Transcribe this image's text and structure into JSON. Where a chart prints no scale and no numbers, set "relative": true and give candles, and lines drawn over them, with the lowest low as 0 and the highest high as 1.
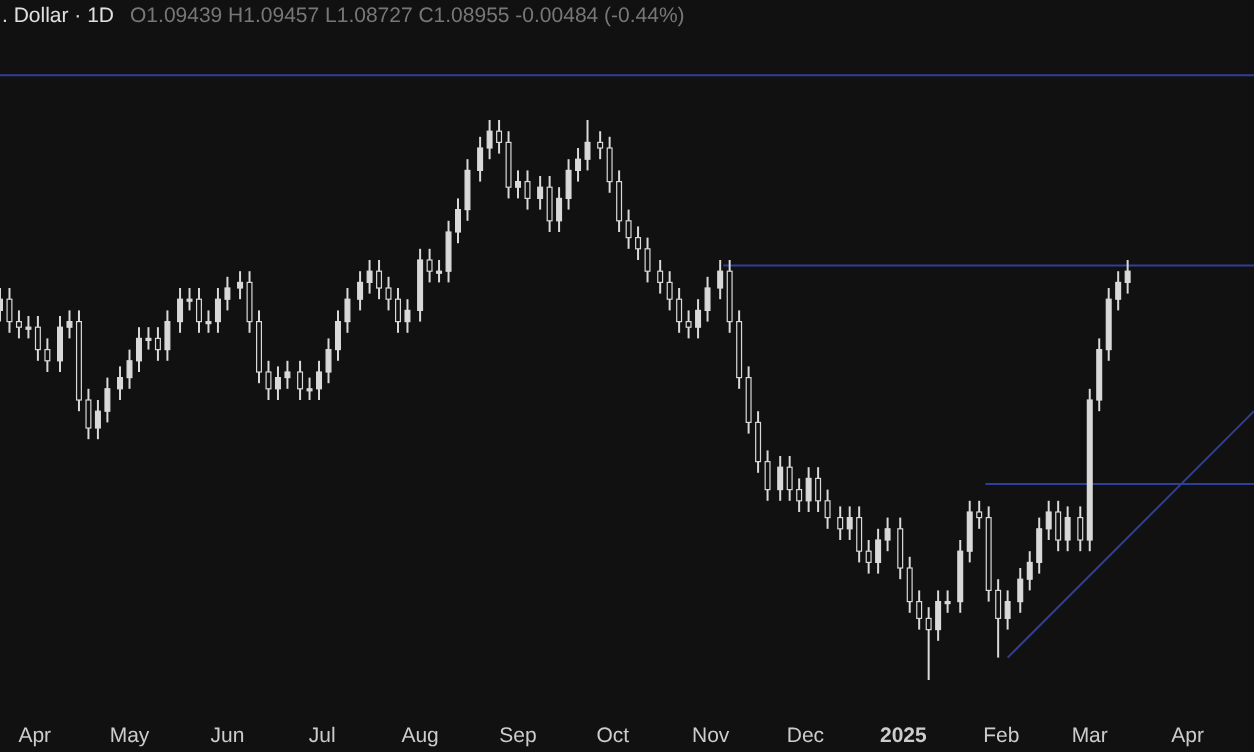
{
  "chart_data": {
    "type": "candlestick",
    "title": ". Dollar · 1D",
    "annotations": [
      "O1.09439 H1.09457 L1.08727 C1.08955 -0.00484 (-0.44%)"
    ],
    "relative": true,
    "color": "#d9d9d9",
    "xlim": [
      "2024-03-21",
      "2025-04-22"
    ],
    "xticks": [
      {
        "value": "2024-04-01",
        "label": "Apr"
      },
      {
        "value": "2024-05-01",
        "label": "May"
      },
      {
        "value": "2024-06-01",
        "label": "Jun"
      },
      {
        "value": "2024-07-01",
        "label": "Jul"
      },
      {
        "value": "2024-08-01",
        "label": "Aug"
      },
      {
        "value": "2024-09-01",
        "label": "Sep"
      },
      {
        "value": "2024-10-01",
        "label": "Oct"
      },
      {
        "value": "2024-11-01",
        "label": "Nov"
      },
      {
        "value": "2024-12-01",
        "label": "Dec"
      },
      {
        "value": "2025-01-01",
        "label": "2025"
      },
      {
        "value": "2025-02-01",
        "label": "Feb"
      },
      {
        "value": "2025-03-01",
        "label": "Mar"
      },
      {
        "value": "2025-04-01",
        "label": "Apr"
      }
    ],
    "grid": false,
    "tick_labels": "x",
    "x": [
      "2024-03-21",
      "2024-03-24",
      "2024-03-27",
      "2024-03-30",
      "2024-04-02",
      "2024-04-05",
      "2024-04-09",
      "2024-04-12",
      "2024-04-15",
      "2024-04-18",
      "2024-04-21",
      "2024-04-24",
      "2024-04-28",
      "2024-05-01",
      "2024-05-04",
      "2024-05-07",
      "2024-05-10",
      "2024-05-13",
      "2024-05-17",
      "2024-05-20",
      "2024-05-23",
      "2024-05-26",
      "2024-05-29",
      "2024-06-01",
      "2024-06-05",
      "2024-06-08",
      "2024-06-11",
      "2024-06-14",
      "2024-06-17",
      "2024-06-20",
      "2024-06-24",
      "2024-06-27",
      "2024-06-30",
      "2024-07-03",
      "2024-07-06",
      "2024-07-09",
      "2024-07-13",
      "2024-07-16",
      "2024-07-19",
      "2024-07-22",
      "2024-07-25",
      "2024-07-28",
      "2024-08-01",
      "2024-08-04",
      "2024-08-07",
      "2024-08-10",
      "2024-08-13",
      "2024-08-16",
      "2024-08-20",
      "2024-08-23",
      "2024-08-26",
      "2024-08-29",
      "2024-09-01",
      "2024-09-04",
      "2024-09-08",
      "2024-09-11",
      "2024-09-14",
      "2024-09-17",
      "2024-09-20",
      "2024-09-23",
      "2024-09-27",
      "2024-09-30",
      "2024-10-03",
      "2024-10-06",
      "2024-10-09",
      "2024-10-12",
      "2024-10-16",
      "2024-10-19",
      "2024-10-22",
      "2024-10-25",
      "2024-10-28",
      "2024-10-31",
      "2024-11-04",
      "2024-11-07",
      "2024-11-10",
      "2024-11-13",
      "2024-11-16",
      "2024-11-19",
      "2024-11-23",
      "2024-11-26",
      "2024-11-29",
      "2024-12-02",
      "2024-12-05",
      "2024-12-08",
      "2024-12-12",
      "2024-12-15",
      "2024-12-18",
      "2024-12-21",
      "2024-12-24",
      "2024-12-27",
      "2024-12-31",
      "2025-01-03",
      "2025-01-06",
      "2025-01-09",
      "2025-01-12",
      "2025-01-15",
      "2025-01-19",
      "2025-01-22",
      "2025-01-25",
      "2025-01-28",
      "2025-01-31",
      "2025-02-03",
      "2025-02-07",
      "2025-02-10",
      "2025-02-13",
      "2025-02-16",
      "2025-02-19",
      "2025-02-22",
      "2025-02-26",
      "2025-03-01",
      "2025-03-04",
      "2025-03-07",
      "2025-03-10",
      "2025-03-13"
    ],
    "ohlc": [
      [
        0.66,
        0.7,
        0.64,
        0.68
      ],
      [
        0.68,
        0.7,
        0.62,
        0.64
      ],
      [
        0.64,
        0.66,
        0.61,
        0.63
      ],
      [
        0.63,
        0.65,
        0.61,
        0.63
      ],
      [
        0.63,
        0.65,
        0.57,
        0.59
      ],
      [
        0.59,
        0.61,
        0.55,
        0.57
      ],
      [
        0.57,
        0.65,
        0.55,
        0.63
      ],
      [
        0.63,
        0.66,
        0.61,
        0.64
      ],
      [
        0.64,
        0.66,
        0.48,
        0.5
      ],
      [
        0.5,
        0.52,
        0.43,
        0.45
      ],
      [
        0.45,
        0.5,
        0.43,
        0.48
      ],
      [
        0.48,
        0.54,
        0.46,
        0.52
      ],
      [
        0.52,
        0.56,
        0.5,
        0.54
      ],
      [
        0.54,
        0.59,
        0.52,
        0.57
      ],
      [
        0.57,
        0.63,
        0.55,
        0.61
      ],
      [
        0.61,
        0.63,
        0.59,
        0.61
      ],
      [
        0.61,
        0.63,
        0.57,
        0.59
      ],
      [
        0.59,
        0.66,
        0.57,
        0.64
      ],
      [
        0.64,
        0.7,
        0.62,
        0.68
      ],
      [
        0.68,
        0.7,
        0.66,
        0.68
      ],
      [
        0.68,
        0.7,
        0.62,
        0.64
      ],
      [
        0.64,
        0.66,
        0.62,
        0.64
      ],
      [
        0.64,
        0.7,
        0.62,
        0.68
      ],
      [
        0.68,
        0.72,
        0.66,
        0.7
      ],
      [
        0.7,
        0.73,
        0.68,
        0.71
      ],
      [
        0.71,
        0.73,
        0.62,
        0.64
      ],
      [
        0.64,
        0.66,
        0.53,
        0.55
      ],
      [
        0.55,
        0.57,
        0.5,
        0.52
      ],
      [
        0.52,
        0.56,
        0.5,
        0.54
      ],
      [
        0.54,
        0.57,
        0.52,
        0.55
      ],
      [
        0.55,
        0.57,
        0.5,
        0.52
      ],
      [
        0.52,
        0.54,
        0.5,
        0.52
      ],
      [
        0.52,
        0.57,
        0.5,
        0.55
      ],
      [
        0.55,
        0.61,
        0.53,
        0.59
      ],
      [
        0.59,
        0.66,
        0.57,
        0.64
      ],
      [
        0.64,
        0.7,
        0.62,
        0.68
      ],
      [
        0.68,
        0.73,
        0.66,
        0.71
      ],
      [
        0.71,
        0.75,
        0.69,
        0.73
      ],
      [
        0.73,
        0.75,
        0.68,
        0.7
      ],
      [
        0.7,
        0.72,
        0.66,
        0.68
      ],
      [
        0.68,
        0.7,
        0.62,
        0.64
      ],
      [
        0.64,
        0.68,
        0.62,
        0.66
      ],
      [
        0.66,
        0.77,
        0.64,
        0.75
      ],
      [
        0.75,
        0.77,
        0.71,
        0.73
      ],
      [
        0.73,
        0.75,
        0.71,
        0.73
      ],
      [
        0.73,
        0.82,
        0.71,
        0.8
      ],
      [
        0.8,
        0.86,
        0.78,
        0.84
      ],
      [
        0.84,
        0.93,
        0.82,
        0.91
      ],
      [
        0.91,
        0.97,
        0.89,
        0.95
      ],
      [
        0.95,
        1.0,
        0.93,
        0.98
      ],
      [
        0.98,
        1.0,
        0.94,
        0.96
      ],
      [
        0.96,
        0.98,
        0.86,
        0.88
      ],
      [
        0.88,
        0.91,
        0.86,
        0.89
      ],
      [
        0.89,
        0.91,
        0.84,
        0.86
      ],
      [
        0.86,
        0.9,
        0.84,
        0.88
      ],
      [
        0.88,
        0.9,
        0.8,
        0.82
      ],
      [
        0.82,
        0.88,
        0.8,
        0.86
      ],
      [
        0.86,
        0.93,
        0.84,
        0.91
      ],
      [
        0.91,
        0.95,
        0.89,
        0.93
      ],
      [
        0.93,
        1.0,
        0.91,
        0.96
      ],
      [
        0.96,
        0.98,
        0.93,
        0.95
      ],
      [
        0.95,
        0.97,
        0.87,
        0.89
      ],
      [
        0.89,
        0.91,
        0.8,
        0.82
      ],
      [
        0.82,
        0.84,
        0.77,
        0.79
      ],
      [
        0.79,
        0.81,
        0.75,
        0.77
      ],
      [
        0.77,
        0.79,
        0.71,
        0.73
      ],
      [
        0.73,
        0.75,
        0.69,
        0.71
      ],
      [
        0.71,
        0.73,
        0.66,
        0.68
      ],
      [
        0.68,
        0.7,
        0.62,
        0.64
      ],
      [
        0.64,
        0.66,
        0.61,
        0.63
      ],
      [
        0.63,
        0.68,
        0.61,
        0.66
      ],
      [
        0.66,
        0.72,
        0.64,
        0.7
      ],
      [
        0.7,
        0.75,
        0.68,
        0.73
      ],
      [
        0.73,
        0.75,
        0.62,
        0.64
      ],
      [
        0.64,
        0.66,
        0.52,
        0.54
      ],
      [
        0.54,
        0.56,
        0.44,
        0.46
      ],
      [
        0.46,
        0.48,
        0.37,
        0.39
      ],
      [
        0.39,
        0.41,
        0.32,
        0.34
      ],
      [
        0.34,
        0.4,
        0.32,
        0.38
      ],
      [
        0.38,
        0.4,
        0.32,
        0.34
      ],
      [
        0.34,
        0.36,
        0.3,
        0.32
      ],
      [
        0.32,
        0.38,
        0.3,
        0.36
      ],
      [
        0.36,
        0.38,
        0.3,
        0.32
      ],
      [
        0.32,
        0.34,
        0.27,
        0.29
      ],
      [
        0.29,
        0.31,
        0.25,
        0.27
      ],
      [
        0.27,
        0.31,
        0.25,
        0.29
      ],
      [
        0.29,
        0.31,
        0.21,
        0.23
      ],
      [
        0.23,
        0.25,
        0.19,
        0.21
      ],
      [
        0.21,
        0.27,
        0.19,
        0.25
      ],
      [
        0.25,
        0.29,
        0.23,
        0.27
      ],
      [
        0.27,
        0.29,
        0.18,
        0.2
      ],
      [
        0.2,
        0.22,
        0.12,
        0.14
      ],
      [
        0.14,
        0.16,
        0.09,
        0.11
      ],
      [
        0.11,
        0.13,
        0.0,
        0.09
      ],
      [
        0.09,
        0.16,
        0.07,
        0.14
      ],
      [
        0.14,
        0.16,
        0.12,
        0.14
      ],
      [
        0.14,
        0.25,
        0.12,
        0.23
      ],
      [
        0.23,
        0.32,
        0.21,
        0.3
      ],
      [
        0.3,
        0.32,
        0.27,
        0.29
      ],
      [
        0.29,
        0.31,
        0.14,
        0.16
      ],
      [
        0.16,
        0.18,
        0.04,
        0.11
      ],
      [
        0.11,
        0.16,
        0.09,
        0.14
      ],
      [
        0.14,
        0.2,
        0.12,
        0.18
      ],
      [
        0.18,
        0.23,
        0.16,
        0.21
      ],
      [
        0.21,
        0.29,
        0.19,
        0.27
      ],
      [
        0.27,
        0.32,
        0.25,
        0.3
      ],
      [
        0.3,
        0.32,
        0.23,
        0.25
      ],
      [
        0.25,
        0.31,
        0.23,
        0.29
      ],
      [
        0.29,
        0.31,
        0.23,
        0.25
      ],
      [
        0.25,
        0.52,
        0.23,
        0.5
      ],
      [
        0.5,
        0.61,
        0.48,
        0.59
      ],
      [
        0.59,
        0.7,
        0.57,
        0.68
      ],
      [
        0.68,
        0.73,
        0.66,
        0.71
      ],
      [
        0.71,
        0.75,
        0.69,
        0.73
      ]
    ],
    "series": [
      {
        "type": "line",
        "color": "#2f3f99",
        "x": [
          "2024-11-05",
          "2025-04-22"
        ],
        "values": [
          0.74,
          0.74
        ]
      },
      {
        "type": "line",
        "color": "#2f3f99",
        "x": [
          "2025-01-27",
          "2025-04-22"
        ],
        "values": [
          0.35,
          0.35
        ]
      },
      {
        "type": "line",
        "color": "#2f3f99",
        "x": [
          "2025-02-03",
          "2025-04-22"
        ],
        "values": [
          0.04,
          0.48
        ]
      }
    ],
    "ref_lines": [
      {
        "axis": "y",
        "value": 1.08,
        "color": "#2f3f99"
      }
    ]
  }
}
